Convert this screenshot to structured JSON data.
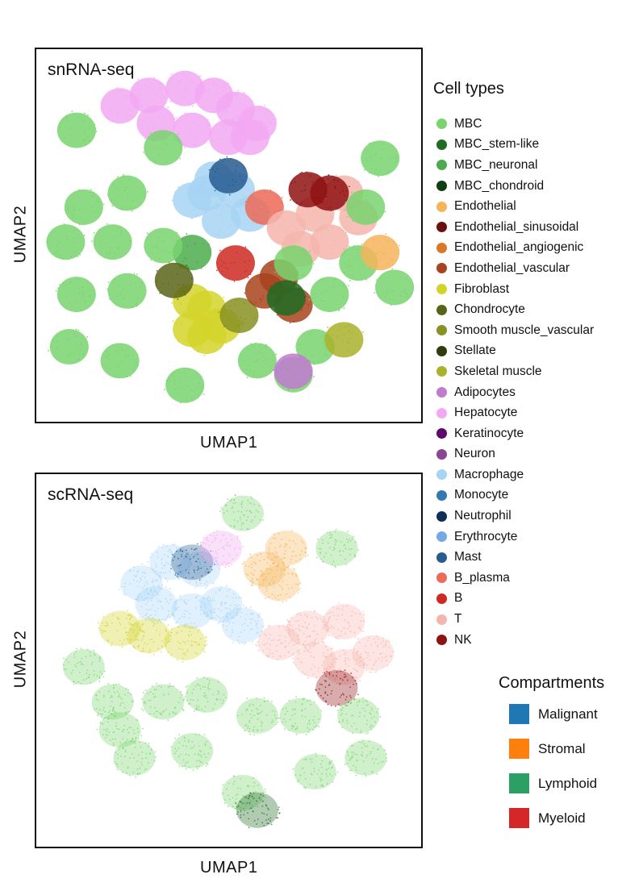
{
  "chart_data": [
    {
      "type": "scatter",
      "title": "snRNA-seq",
      "xlabel": "UMAP1",
      "ylabel": "UMAP2",
      "clusters": [
        {
          "type": "Hepatocyte",
          "points": [
            [
              0.2,
              0.87
            ],
            [
              0.28,
              0.9
            ],
            [
              0.38,
              0.92
            ],
            [
              0.46,
              0.9
            ],
            [
              0.52,
              0.86
            ],
            [
              0.58,
              0.82
            ],
            [
              0.3,
              0.82
            ],
            [
              0.4,
              0.8
            ],
            [
              0.5,
              0.78
            ],
            [
              0.56,
              0.78
            ]
          ]
        },
        {
          "type": "Macrophage",
          "points": [
            [
              0.4,
              0.6
            ],
            [
              0.46,
              0.66
            ],
            [
              0.52,
              0.63
            ],
            [
              0.56,
              0.56
            ],
            [
              0.48,
              0.54
            ],
            [
              0.44,
              0.62
            ]
          ]
        },
        {
          "type": "Mast",
          "points": [
            [
              0.5,
              0.67
            ]
          ]
        },
        {
          "type": "B_plasma",
          "points": [
            [
              0.6,
              0.58
            ]
          ]
        },
        {
          "type": "T",
          "points": [
            [
              0.66,
              0.52
            ],
            [
              0.74,
              0.56
            ],
            [
              0.82,
              0.62
            ],
            [
              0.86,
              0.55
            ],
            [
              0.78,
              0.48
            ],
            [
              0.7,
              0.46
            ]
          ]
        },
        {
          "type": "NK",
          "points": [
            [
              0.72,
              0.63
            ],
            [
              0.78,
              0.62
            ]
          ]
        },
        {
          "type": "B",
          "points": [
            [
              0.52,
              0.42
            ]
          ]
        },
        {
          "type": "Fibroblast",
          "points": [
            [
              0.4,
              0.23
            ],
            [
              0.44,
              0.29
            ],
            [
              0.48,
              0.24
            ],
            [
              0.4,
              0.31
            ],
            [
              0.44,
              0.21
            ]
          ]
        },
        {
          "type": "Smooth muscle_vascular",
          "points": [
            [
              0.53,
              0.27
            ]
          ]
        },
        {
          "type": "Endothelial_vascular",
          "points": [
            [
              0.6,
              0.34
            ],
            [
              0.64,
              0.38
            ],
            [
              0.68,
              0.3
            ]
          ]
        },
        {
          "type": "MBC_neuronal",
          "points": [
            [
              0.4,
              0.45
            ]
          ]
        },
        {
          "type": "Chondrocyte",
          "points": [
            [
              0.35,
              0.37
            ]
          ]
        },
        {
          "type": "MBC_stem-like",
          "points": [
            [
              0.66,
              0.32
            ]
          ]
        },
        {
          "type": "MBC",
          "points": [
            [
              0.08,
              0.8
            ],
            [
              0.32,
              0.75
            ],
            [
              0.1,
              0.58
            ],
            [
              0.22,
              0.62
            ],
            [
              0.05,
              0.48
            ],
            [
              0.18,
              0.48
            ],
            [
              0.32,
              0.47
            ],
            [
              0.08,
              0.33
            ],
            [
              0.22,
              0.34
            ],
            [
              0.06,
              0.18
            ],
            [
              0.2,
              0.14
            ],
            [
              0.38,
              0.07
            ],
            [
              0.74,
              0.18
            ],
            [
              0.78,
              0.33
            ],
            [
              0.86,
              0.42
            ],
            [
              0.68,
              0.42
            ],
            [
              0.92,
              0.72
            ],
            [
              0.88,
              0.58
            ],
            [
              0.96,
              0.35
            ],
            [
              0.68,
              0.1
            ],
            [
              0.58,
              0.14
            ]
          ]
        },
        {
          "type": "Endothelial",
          "points": [
            [
              0.92,
              0.45
            ]
          ]
        },
        {
          "type": "Skeletal muscle",
          "points": [
            [
              0.82,
              0.2
            ]
          ]
        },
        {
          "type": "Adipocytes",
          "points": [
            [
              0.68,
              0.11
            ]
          ]
        }
      ]
    },
    {
      "type": "scatter",
      "title": "scRNA-seq",
      "xlabel": "UMAP1",
      "ylabel": "UMAP2",
      "clusters": [
        {
          "type": "Macrophage",
          "points": [
            [
              0.26,
              0.72
            ],
            [
              0.34,
              0.78
            ],
            [
              0.42,
              0.76
            ],
            [
              0.48,
              0.66
            ],
            [
              0.54,
              0.6
            ],
            [
              0.4,
              0.64
            ],
            [
              0.3,
              0.66
            ]
          ]
        },
        {
          "type": "Mast",
          "points": [
            [
              0.4,
              0.78
            ]
          ]
        },
        {
          "type": "Hepatocyte",
          "points": [
            [
              0.48,
              0.82
            ]
          ]
        },
        {
          "type": "Endothelial",
          "points": [
            [
              0.6,
              0.76
            ],
            [
              0.66,
              0.82
            ],
            [
              0.64,
              0.72
            ]
          ]
        },
        {
          "type": "Fibroblast",
          "points": [
            [
              0.2,
              0.59
            ],
            [
              0.28,
              0.57
            ],
            [
              0.38,
              0.55
            ]
          ]
        },
        {
          "type": "T",
          "points": [
            [
              0.64,
              0.55
            ],
            [
              0.72,
              0.59
            ],
            [
              0.82,
              0.61
            ],
            [
              0.9,
              0.52
            ],
            [
              0.82,
              0.48
            ],
            [
              0.74,
              0.5
            ]
          ]
        },
        {
          "type": "NK",
          "points": [
            [
              0.8,
              0.42
            ]
          ]
        },
        {
          "type": "MBC",
          "points": [
            [
              0.54,
              0.92
            ],
            [
              0.8,
              0.82
            ],
            [
              0.1,
              0.48
            ],
            [
              0.18,
              0.38
            ],
            [
              0.32,
              0.38
            ],
            [
              0.44,
              0.4
            ],
            [
              0.58,
              0.34
            ],
            [
              0.7,
              0.34
            ],
            [
              0.86,
              0.34
            ],
            [
              0.24,
              0.22
            ],
            [
              0.4,
              0.24
            ],
            [
              0.54,
              0.12
            ],
            [
              0.74,
              0.18
            ],
            [
              0.88,
              0.22
            ],
            [
              0.2,
              0.3
            ]
          ]
        },
        {
          "type": "MBC_stem-like",
          "points": [
            [
              0.58,
              0.07
            ]
          ]
        }
      ]
    }
  ],
  "legend": {
    "title": "Cell types",
    "items": [
      {
        "label": "MBC",
        "color": "#79d46e"
      },
      {
        "label": "MBC_stem-like",
        "color": "#1f6b23"
      },
      {
        "label": "MBC_neuronal",
        "color": "#4cab4c"
      },
      {
        "label": "MBC_chondroid",
        "color": "#0f3f12"
      },
      {
        "label": "Endothelial",
        "color": "#f5b45a"
      },
      {
        "label": "Endothelial_sinusoidal",
        "color": "#6b0f0f"
      },
      {
        "label": "Endothelial_angiogenic",
        "color": "#dc7723"
      },
      {
        "label": "Endothelial_vascular",
        "color": "#a8431d"
      },
      {
        "label": "Fibroblast",
        "color": "#d3d42a"
      },
      {
        "label": "Chondrocyte",
        "color": "#5a6418"
      },
      {
        "label": "Smooth muscle_vascular",
        "color": "#889122"
      },
      {
        "label": "Stellate",
        "color": "#313c0d"
      },
      {
        "label": "Skeletal muscle",
        "color": "#a9b22a"
      },
      {
        "label": "Adipocytes",
        "color": "#c07ad0"
      },
      {
        "label": "Hepatocyte",
        "color": "#f2a8f2"
      },
      {
        "label": "Keratinocyte",
        "color": "#5d0a6b"
      },
      {
        "label": "Neuron",
        "color": "#8a4494"
      },
      {
        "label": "Macrophage",
        "color": "#a7d3f5"
      },
      {
        "label": "Monocyte",
        "color": "#3478b3"
      },
      {
        "label": "Neutrophil",
        "color": "#0f2f57"
      },
      {
        "label": "Erythrocyte",
        "color": "#74a9e3"
      },
      {
        "label": "Mast",
        "color": "#275b91"
      },
      {
        "label": "B_plasma",
        "color": "#ec6a58"
      },
      {
        "label": "B",
        "color": "#cc2a22"
      },
      {
        "label": "T",
        "color": "#f5b5ad"
      },
      {
        "label": "NK",
        "color": "#8f1212"
      }
    ]
  },
  "compartments": {
    "title": "Compartments",
    "items": [
      {
        "label": "Malignant",
        "color": "#1f77b4"
      },
      {
        "label": "Stromal",
        "color": "#ff7f0e"
      },
      {
        "label": "Lymphoid",
        "color": "#2ca064"
      },
      {
        "label": "Myeloid",
        "color": "#d62728"
      }
    ]
  }
}
